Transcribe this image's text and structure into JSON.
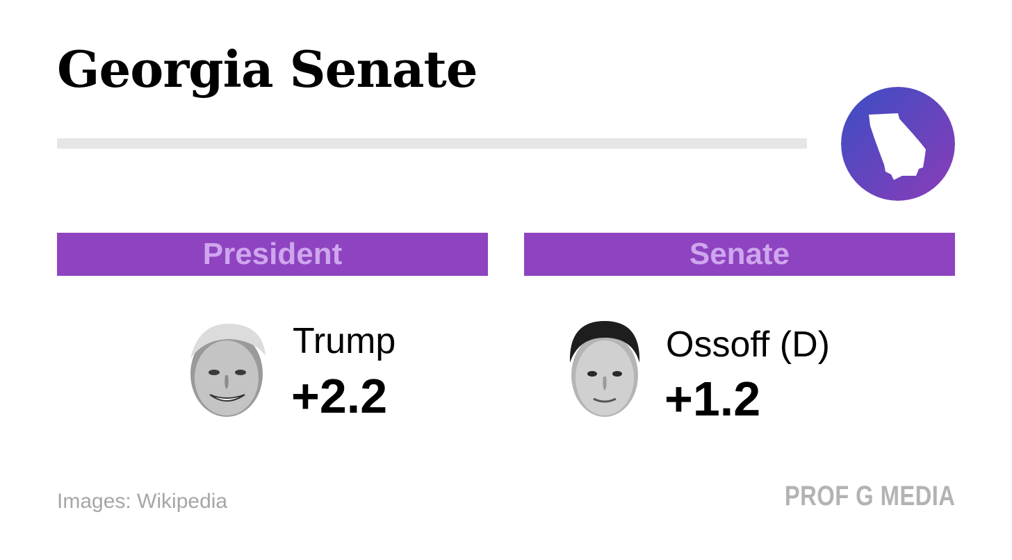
{
  "title": "Georgia Senate",
  "state_icon": {
    "icon": "georgia-state-outline-icon",
    "gradient_start": "#3b4ec4",
    "gradient_end": "#8b3cb8"
  },
  "colors": {
    "header_bg": "#8e44c0",
    "header_text": "#cfa6ee",
    "rule": "#e6e6e6",
    "muted_text": "#a6a6a6"
  },
  "columns": [
    {
      "header": "President",
      "candidate": {
        "name": "Trump",
        "margin": "+2.2",
        "portrait": "trump-portrait-image"
      }
    },
    {
      "header": "Senate",
      "candidate": {
        "name": "Ossoff (D)",
        "margin": "+1.2",
        "portrait": "ossoff-portrait-image"
      }
    }
  ],
  "footer": {
    "credit": "Images: Wikipedia",
    "brand": "PROF G MEDIA"
  }
}
